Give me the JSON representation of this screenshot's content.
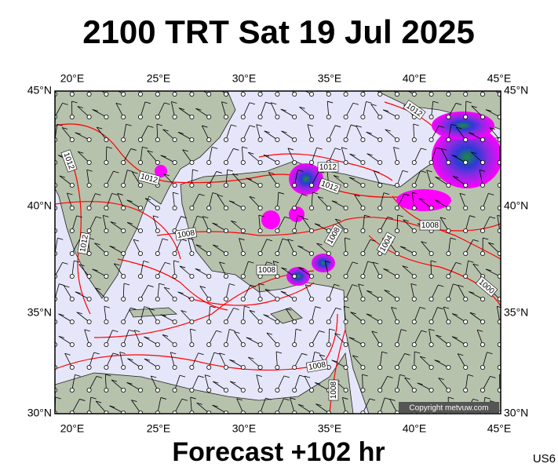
{
  "header": {
    "title": "2100 TRT Sat 19 Jul 2025"
  },
  "footer": {
    "forecast": "Forecast +102 hr",
    "code": "US6"
  },
  "map": {
    "copyright": "Copyright metvuw.com",
    "longitude_labels": [
      "20°E",
      "25°E",
      "30°E",
      "35°E",
      "40°E",
      "45°E"
    ],
    "latitude_labels": [
      "45°N",
      "40°N",
      "35°N",
      "30°N"
    ],
    "isobar_labels": [
      "1012",
      "1012",
      "1012",
      "1012",
      "1012",
      "1012",
      "1008",
      "1008",
      "1008",
      "1008",
      "1008",
      "1008",
      "1004",
      "1000"
    ]
  }
}
